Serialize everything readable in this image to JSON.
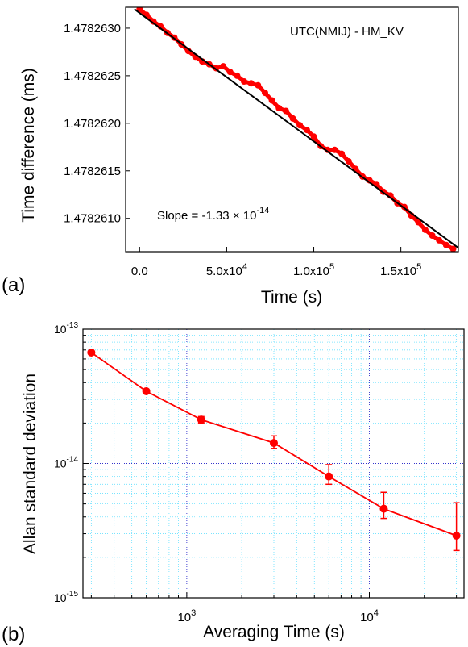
{
  "colors": {
    "data": "#ff0000",
    "fit": "#000000",
    "grid_major": "#3333cc",
    "grid_minor": "#66e0ff",
    "frame": "#000000"
  },
  "chart_data": [
    {
      "panel_label": "(a)",
      "type": "scatter",
      "annotation": "UTC(NMIJ) - HM_KV",
      "xlabel": "Time (s)",
      "ylabel": "Time difference (ms)",
      "xlim": [
        -8000,
        183000
      ],
      "ylim": [
        1.47826065,
        1.47826322
      ],
      "x_ticks": [
        {
          "value": 0,
          "label": "0.0",
          "exp": ""
        },
        {
          "value": 50000,
          "label": "5.0x10",
          "exp": "4"
        },
        {
          "value": 100000,
          "label": "1.0x10",
          "exp": "5"
        },
        {
          "value": 150000,
          "label": "1.5x10",
          "exp": "5"
        }
      ],
      "y_ticks": [
        {
          "value": 1.478261,
          "label": "1.4782610"
        },
        {
          "value": 1.4782615,
          "label": "1.4782615"
        },
        {
          "value": 1.478262,
          "label": "1.4782620"
        },
        {
          "value": 1.4782625,
          "label": "1.4782625"
        },
        {
          "value": 1.478263,
          "label": "1.4782630"
        }
      ],
      "slope_text": {
        "prefix": "Slope = -1.33 × 10",
        "exp": "-14"
      },
      "series": [
        {
          "kind": "measured",
          "x": [
            0,
            4000,
            8000,
            12000,
            16000,
            20000,
            24000,
            28000,
            32000,
            36000,
            40000,
            44000,
            48000,
            52000,
            56000,
            60000,
            64000,
            68000,
            72000,
            76000,
            80000,
            84000,
            88000,
            92000,
            96000,
            100000,
            104000,
            108000,
            112000,
            116000,
            120000,
            124000,
            128000,
            132000,
            136000,
            140000,
            144000,
            148000,
            152000,
            156000,
            160000,
            164000,
            168000,
            172000,
            176000,
            180000
          ],
          "y": [
            1.4782632,
            1.47826314,
            1.47826307,
            1.47826302,
            1.47826295,
            1.4782629,
            1.47826283,
            1.47826276,
            1.4782627,
            1.47826265,
            1.47826262,
            1.47826258,
            1.4782626,
            1.47826254,
            1.4782625,
            1.47826244,
            1.47826242,
            1.4782624,
            1.47826232,
            1.47826224,
            1.47826216,
            1.47826213,
            1.47826205,
            1.47826198,
            1.47826193,
            1.47826186,
            1.47826176,
            1.47826172,
            1.47826172,
            1.47826168,
            1.4782616,
            1.47826152,
            1.47826144,
            1.4782614,
            1.47826136,
            1.47826128,
            1.47826124,
            1.47826116,
            1.47826112,
            1.47826103,
            1.47826096,
            1.47826088,
            1.47826082,
            1.47826077,
            1.47826072,
            1.47826068
          ]
        },
        {
          "kind": "fit",
          "x": [
            -3000,
            183000
          ],
          "y": [
            1.4782632,
            1.47826069
          ]
        }
      ]
    },
    {
      "panel_label": "(b)",
      "type": "line",
      "xscale": "log",
      "yscale": "log",
      "xlabel": "Averaging Time (s)",
      "ylabel": "Allan standard deviation",
      "xlim": [
        270,
        33000
      ],
      "ylim": [
        1e-15,
        1e-13
      ],
      "grid": "on",
      "x_ticks": [
        {
          "value": 1000,
          "label": "10",
          "exp": "3"
        },
        {
          "value": 10000,
          "label": "10",
          "exp": "4"
        }
      ],
      "y_ticks": [
        {
          "value": 1e-15,
          "label": "10",
          "exp": "-15"
        },
        {
          "value": 1e-14,
          "label": "10",
          "exp": "-14"
        },
        {
          "value": 1e-13,
          "label": "10",
          "exp": "-13"
        }
      ],
      "series": [
        {
          "x": [
            300,
            600,
            1200,
            3000,
            6000,
            12000,
            30000
          ],
          "y": [
            6.7e-14,
            3.45e-14,
            2.12e-14,
            1.42e-14,
            8e-15,
            4.6e-15,
            2.9e-15
          ],
          "err_low": [
            0,
            0,
            1.15e-15,
            1.25e-15,
            1e-15,
            7e-16,
            6.5e-16
          ],
          "err_high": [
            0,
            0,
            1.15e-15,
            1.85e-15,
            1.8e-15,
            1.5e-15,
            2.2e-15
          ]
        }
      ]
    }
  ]
}
